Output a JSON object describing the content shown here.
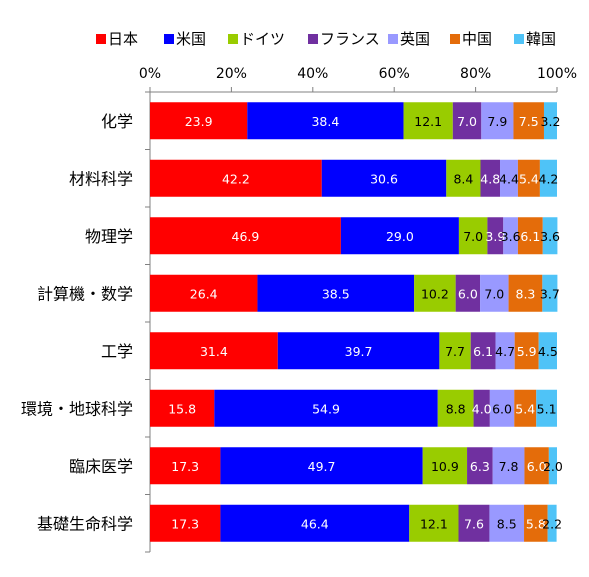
{
  "chart_data": {
    "type": "bar",
    "orientation": "horizontal",
    "stacked": "percent",
    "title": "",
    "xlabel": "",
    "ylabel": "",
    "xlim": [
      0,
      100
    ],
    "x_ticks": [
      "0%",
      "20%",
      "40%",
      "60%",
      "80%",
      "100%"
    ],
    "grid": false,
    "legend": {
      "position": "top"
    },
    "categories": [
      "化学",
      "材料科学",
      "物理学",
      "計算機・数学",
      "工学",
      "環境・地球科学",
      "臨床医学",
      "基礎生命科学"
    ],
    "series": [
      {
        "name": "日本",
        "color": "#ff0000",
        "label_color": "#ffffff",
        "values": [
          23.9,
          42.2,
          46.9,
          26.4,
          31.4,
          15.8,
          17.3,
          17.3
        ]
      },
      {
        "name": "米国",
        "color": "#0000ff",
        "label_color": "#ffffff",
        "values": [
          38.4,
          30.6,
          29.0,
          38.5,
          39.7,
          54.9,
          49.7,
          46.4
        ]
      },
      {
        "name": "ドイツ",
        "color": "#99cc00",
        "label_color": "#000000",
        "values": [
          12.1,
          8.4,
          7.0,
          10.2,
          7.7,
          8.8,
          10.9,
          12.1
        ]
      },
      {
        "name": "フランス",
        "color": "#7030a0",
        "label_color": "#ffffff",
        "values": [
          7.0,
          4.8,
          3.9,
          6.0,
          6.1,
          4.0,
          6.3,
          7.6
        ]
      },
      {
        "name": "英国",
        "color": "#9999ff",
        "label_color": "#000000",
        "values": [
          7.9,
          4.4,
          3.6,
          7.0,
          4.7,
          6.0,
          7.8,
          8.5
        ]
      },
      {
        "name": "中国",
        "color": "#e46c0a",
        "label_color": "#ffffff",
        "values": [
          7.5,
          5.4,
          6.1,
          8.3,
          5.9,
          5.4,
          6.0,
          5.8
        ]
      },
      {
        "name": "韓国",
        "color": "#4fc3f7",
        "label_color": "#000000",
        "values": [
          3.2,
          4.2,
          3.6,
          3.7,
          4.5,
          5.1,
          2.0,
          2.2
        ]
      }
    ]
  }
}
